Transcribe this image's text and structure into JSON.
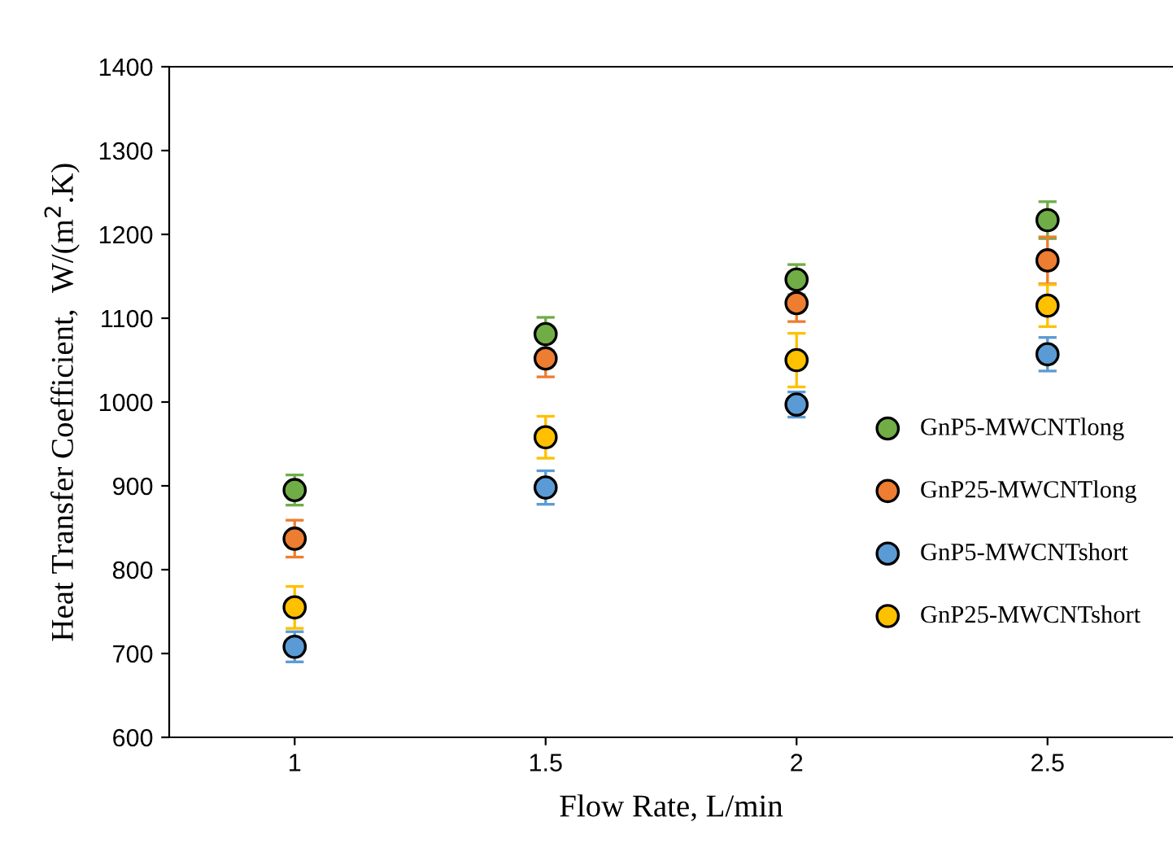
{
  "chart_data": {
    "type": "scatter",
    "xlabel": "Flow Rate, L/min",
    "ylabel": "Heat Transfer Coefficient,  W/(m$^{2}$.K)",
    "categories": [
      "1",
      "1.5",
      "2",
      "2.5"
    ],
    "ylim": [
      600,
      1400
    ],
    "yticks": [
      600,
      700,
      800,
      900,
      1000,
      1100,
      1200,
      1300,
      1400
    ],
    "grid": false,
    "legend": "right",
    "marker": "circle",
    "series": [
      {
        "name": "GnP5-MWCNTlong",
        "color": "#70ad47",
        "values": [
          895,
          1081,
          1146,
          1217
        ],
        "errors": [
          18,
          20,
          18,
          22
        ]
      },
      {
        "name": "GnP25-MWCNTlong",
        "color": "#ed7d31",
        "values": [
          837,
          1052,
          1118,
          1169
        ],
        "errors": [
          22,
          22,
          22,
          28
        ]
      },
      {
        "name": "GnP5-MWCNTshort",
        "color": "#5b9bd5",
        "values": [
          708,
          898,
          997,
          1057
        ],
        "errors": [
          18,
          20,
          15,
          20
        ]
      },
      {
        "name": "GnP25-MWCNTshort",
        "color": "#ffc000",
        "values": [
          755,
          958,
          1050,
          1115
        ],
        "errors": [
          25,
          25,
          32,
          25
        ]
      }
    ]
  }
}
